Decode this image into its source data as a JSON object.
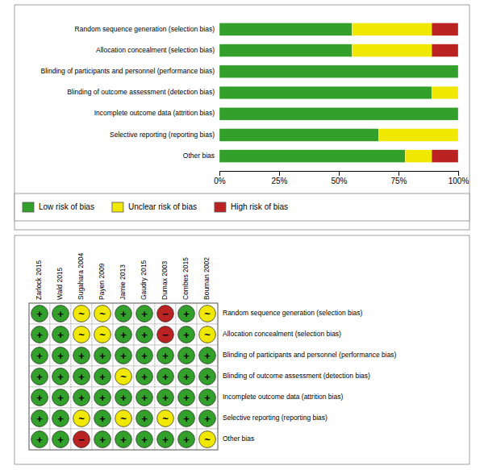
{
  "chart_data": [
    {
      "type": "bar",
      "orientation": "horizontal",
      "stacked": true,
      "legend": "bottom",
      "categories": [
        "Random sequence generation (selection bias)",
        "Allocation concealment (selection bias)",
        "Blinding of participants and personnel (performance bias)",
        "Blinding of outcome assessment (detection bias)",
        "Incomplete outcome data (attrition bias)",
        "Selective reporting (reporting bias)",
        "Other bias"
      ],
      "series": [
        {
          "name": "Low risk of bias",
          "color": "#33a02c",
          "values": [
            55.56,
            55.56,
            100.0,
            88.89,
            100.0,
            66.67,
            77.78
          ]
        },
        {
          "name": "Unclear risk of bias",
          "color": "#f0e800",
          "values": [
            33.33,
            33.33,
            0.0,
            11.11,
            0.0,
            33.33,
            11.11
          ]
        },
        {
          "name": "High risk of bias",
          "color": "#bb2222",
          "values": [
            11.11,
            11.11,
            0.0,
            0.0,
            0.0,
            0.0,
            11.11
          ]
        }
      ],
      "xlim": [
        0,
        100
      ],
      "xticks": [
        {
          "value": 0,
          "label": "0%"
        },
        {
          "value": 25,
          "label": "25%"
        },
        {
          "value": 50,
          "label": "50%"
        },
        {
          "value": 75,
          "label": "75%"
        },
        {
          "value": 100,
          "label": "100%"
        }
      ]
    },
    {
      "type": "grid",
      "x": [
        "Zarlock 2015",
        "Wald 2015",
        "Sugahara 2004",
        "Payen 2009",
        "Jamie 2013",
        "Gaudry 2015",
        "Dumax 2003",
        "Combes 2015",
        "Bouman 2002"
      ],
      "categories": [
        "Random sequence generation (selection bias)",
        "Allocation concealment (selection bias)",
        "Blinding of participants and personnel (performance bias)",
        "Blinding of outcome assessment (detection bias)",
        "Incomplete outcome data (attrition bias)",
        "Selective reporting (reporting bias)",
        "Other bias"
      ],
      "cells": [
        [
          "+",
          "+",
          "~",
          "~",
          "+",
          "+",
          "−",
          "+",
          "~"
        ],
        [
          "+",
          "+",
          "~",
          "~",
          "+",
          "+",
          "−",
          "+",
          "~"
        ],
        [
          "+",
          "+",
          "+",
          "+",
          "+",
          "+",
          "+",
          "+",
          "+"
        ],
        [
          "+",
          "+",
          "+",
          "+",
          "~",
          "+",
          "+",
          "+",
          "+"
        ],
        [
          "+",
          "+",
          "+",
          "+",
          "+",
          "+",
          "+",
          "+",
          "+"
        ],
        [
          "+",
          "+",
          "~",
          "+",
          "~",
          "+",
          "~",
          "+",
          "+"
        ],
        [
          "+",
          "+",
          "−",
          "+",
          "+",
          "+",
          "+",
          "+",
          "~"
        ]
      ],
      "colors": [
        [
          "#33a02c",
          "#33a02c",
          "#f0e800",
          "#f0e800",
          "#33a02c",
          "#33a02c",
          "#bb2222",
          "#33a02c",
          "#f0e800"
        ],
        [
          "#33a02c",
          "#33a02c",
          "#f0e800",
          "#f0e800",
          "#33a02c",
          "#33a02c",
          "#bb2222",
          "#33a02c",
          "#f0e800"
        ],
        [
          "#33a02c",
          "#33a02c",
          "#33a02c",
          "#33a02c",
          "#33a02c",
          "#33a02c",
          "#33a02c",
          "#33a02c",
          "#33a02c"
        ],
        [
          "#33a02c",
          "#33a02c",
          "#33a02c",
          "#33a02c",
          "#f0e800",
          "#33a02c",
          "#33a02c",
          "#33a02c",
          "#33a02c"
        ],
        [
          "#33a02c",
          "#33a02c",
          "#33a02c",
          "#33a02c",
          "#33a02c",
          "#33a02c",
          "#33a02c",
          "#33a02c",
          "#33a02c"
        ],
        [
          "#33a02c",
          "#33a02c",
          "#f0e800",
          "#33a02c",
          "#f0e800",
          "#33a02c",
          "#f0e800",
          "#33a02c",
          "#33a02c"
        ],
        [
          "#33a02c",
          "#33a02c",
          "#bb2222",
          "#33a02c",
          "#33a02c",
          "#33a02c",
          "#33a02c",
          "#33a02c",
          "#f0e800"
        ]
      ]
    }
  ]
}
